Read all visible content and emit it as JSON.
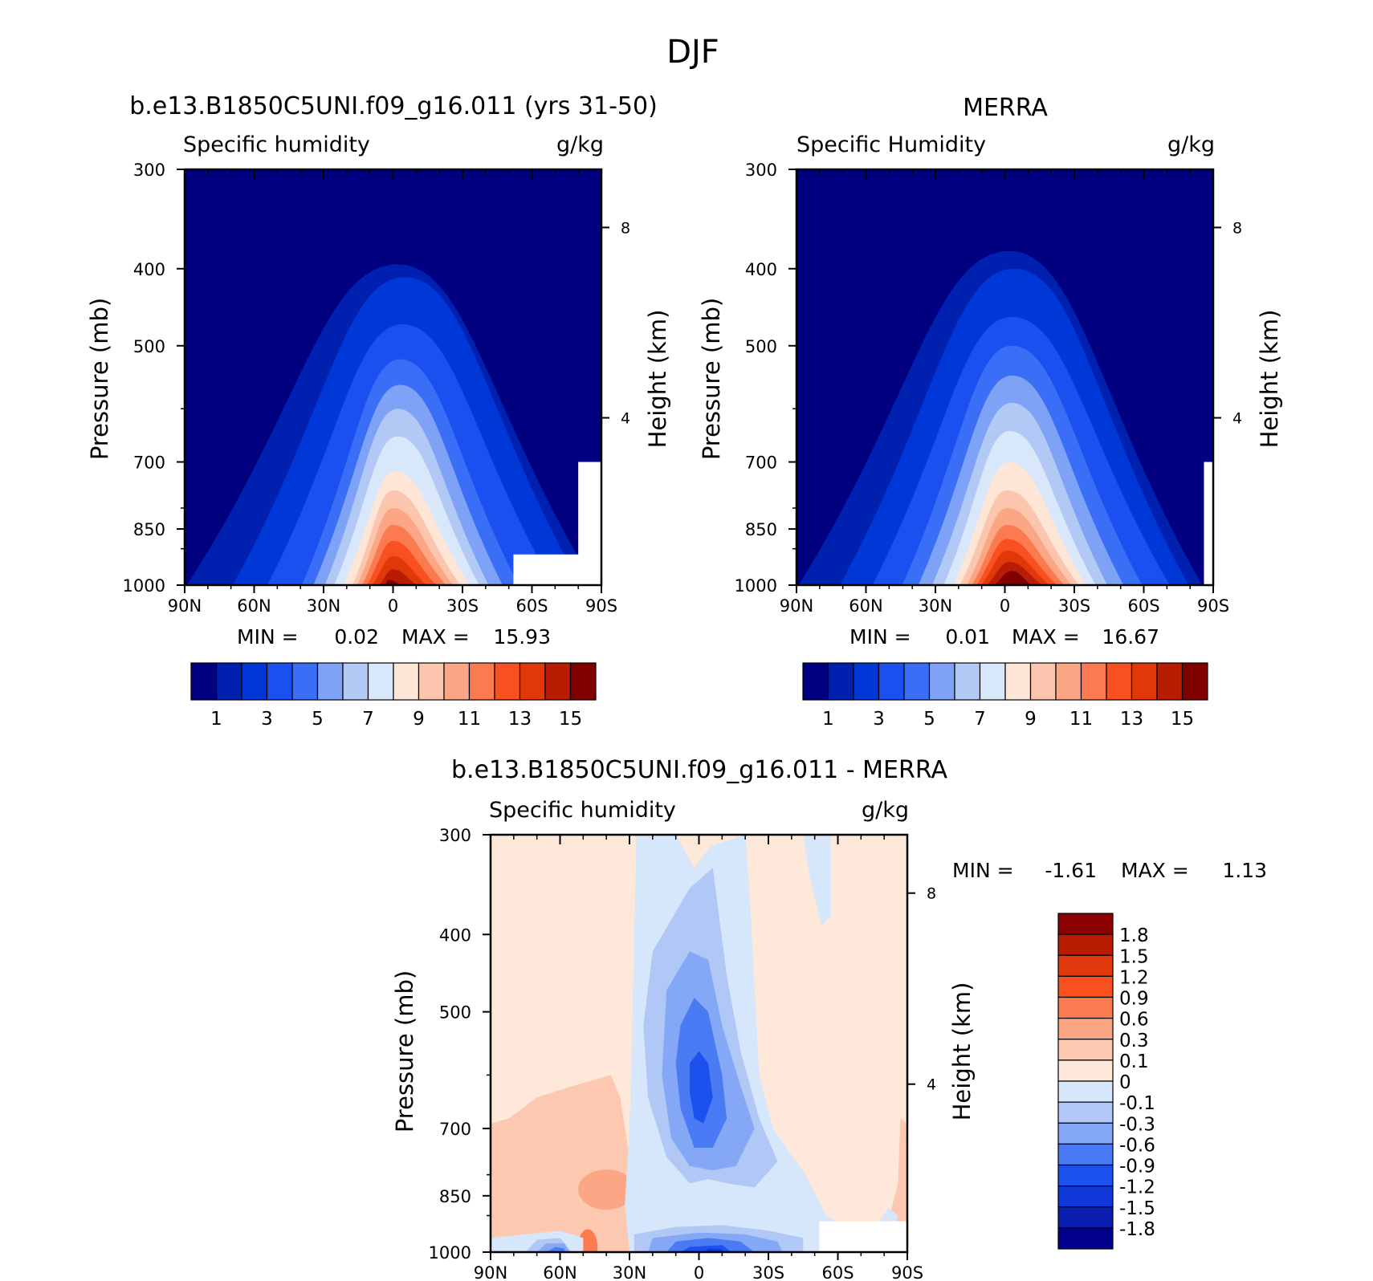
{
  "figure_title": "DJF",
  "units_label": "g/kg",
  "y_axis_label": "Pressure (mb)",
  "y2_axis_label": "Height (km)",
  "pressure_ticks": [
    "300",
    "400",
    "500",
    "700",
    "850",
    "1000"
  ],
  "height_ticks": [
    "8",
    "4"
  ],
  "lat_ticks": [
    "90N",
    "60N",
    "30N",
    "0",
    "30S",
    "60S",
    "90S"
  ],
  "panels": [
    {
      "title": "b.e13.B1850C5UNI.f09_g16.011 (yrs 31-50)",
      "subtitle": "Specific humidity",
      "min_label": "MIN =",
      "min": "0.02",
      "max_label": "MAX =",
      "max": "15.93"
    },
    {
      "title": "MERRA",
      "subtitle": "Specific Humidity",
      "min_label": "MIN =",
      "min": "0.01",
      "max_label": "MAX =",
      "max": "16.67"
    },
    {
      "title": "b.e13.B1850C5UNI.f09_g16.011 - MERRA",
      "subtitle": "Specific humidity",
      "min_label": "MIN =",
      "min": "-1.61",
      "max_label": "MAX =",
      "max": "1.13"
    }
  ],
  "colorbar_abs": {
    "colors": [
      "#000080",
      "#0020b0",
      "#0038d8",
      "#1a4ff0",
      "#3a6ef7",
      "#7ea2f5",
      "#b3c9f5",
      "#d8e7fa",
      "#fde6d6",
      "#fcc6ae",
      "#fba684",
      "#fb7a4f",
      "#f8501f",
      "#e03808",
      "#b81d04",
      "#800000"
    ],
    "labels": [
      "1",
      "3",
      "5",
      "7",
      "9",
      "11",
      "13",
      "15"
    ]
  },
  "colorbar_diff": {
    "colors": [
      "#00008b",
      "#0a1eb0",
      "#0f37d8",
      "#1d51ee",
      "#4a7bf5",
      "#85a8f6",
      "#b1c8f7",
      "#d6e6fb",
      "#fde8da",
      "#fcc8b0",
      "#fba684",
      "#fb7a4f",
      "#f8501f",
      "#e03a0c",
      "#b81d04",
      "#8b0000"
    ],
    "labels": [
      "1.8",
      "1.5",
      "1.2",
      "0.9",
      "0.6",
      "0.3",
      "0.1",
      "0",
      "-0.1",
      "-0.3",
      "-0.6",
      "-0.9",
      "-1.2",
      "-1.5",
      "-1.8"
    ]
  },
  "chart_data": [
    {
      "type": "heatmap",
      "title": "b.e13.B1850C5UNI.f09_g16.011 (yrs 31-50)",
      "subtitle": "Specific humidity",
      "units": "g/kg",
      "xlabel": "",
      "ylabel": "Pressure (mb)",
      "y2label": "Height (km)",
      "x": [
        -90,
        -60,
        -30,
        0,
        30,
        60,
        90
      ],
      "x_tick_labels": [
        "90N",
        "60N",
        "30N",
        "0",
        "30S",
        "60S",
        "90S"
      ],
      "y_ticks": [
        300,
        400,
        500,
        700,
        850,
        1000
      ],
      "ylim": [
        1000,
        300
      ],
      "y_scale": "log",
      "contour_levels": [
        1,
        2,
        3,
        4,
        5,
        6,
        7,
        8,
        9,
        10,
        11,
        12,
        13,
        14,
        15
      ],
      "peak": {
        "lat": 0,
        "pressure": 1000,
        "value": 15.93
      },
      "min": 0.02,
      "max": 15.93
    },
    {
      "type": "heatmap",
      "title": "MERRA",
      "subtitle": "Specific Humidity",
      "units": "g/kg",
      "xlabel": "",
      "ylabel": "Pressure (mb)",
      "y2label": "Height (km)",
      "x": [
        -90,
        -60,
        -30,
        0,
        30,
        60,
        90
      ],
      "x_tick_labels": [
        "90N",
        "60N",
        "30N",
        "0",
        "30S",
        "60S",
        "90S"
      ],
      "y_ticks": [
        300,
        400,
        500,
        700,
        850,
        1000
      ],
      "ylim": [
        1000,
        300
      ],
      "y_scale": "log",
      "contour_levels": [
        1,
        2,
        3,
        4,
        5,
        6,
        7,
        8,
        9,
        10,
        11,
        12,
        13,
        14,
        15
      ],
      "peak": {
        "lat": 0,
        "pressure": 1000,
        "value": 16.67
      },
      "min": 0.01,
      "max": 16.67
    },
    {
      "type": "heatmap",
      "title": "b.e13.B1850C5UNI.f09_g16.011 - MERRA",
      "subtitle": "Specific humidity",
      "units": "g/kg",
      "xlabel": "",
      "ylabel": "Pressure (mb)",
      "y2label": "Height (km)",
      "x": [
        -90,
        -60,
        -30,
        0,
        30,
        60,
        90
      ],
      "x_tick_labels": [
        "90N",
        "60N",
        "30N",
        "0",
        "30S",
        "60S",
        "90S"
      ],
      "y_ticks": [
        300,
        400,
        500,
        700,
        850,
        1000
      ],
      "ylim": [
        1000,
        300
      ],
      "y_scale": "log",
      "contour_levels": [
        -1.8,
        -1.5,
        -1.2,
        -0.9,
        -0.6,
        -0.3,
        -0.1,
        0,
        0.1,
        0.3,
        0.6,
        0.9,
        1.2,
        1.5,
        1.8
      ],
      "min": -1.61,
      "max": 1.13
    }
  ]
}
